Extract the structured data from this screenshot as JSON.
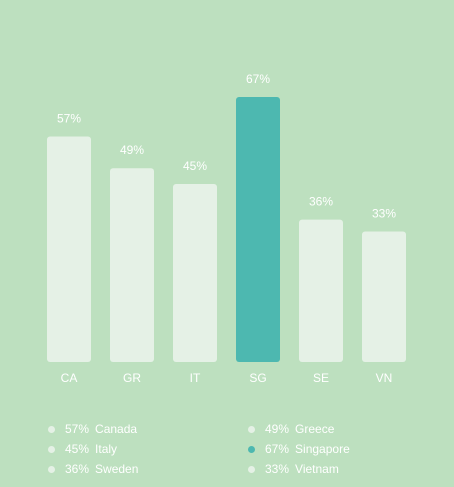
{
  "chart_data": {
    "type": "bar",
    "categories": [
      "CA",
      "GR",
      "IT",
      "SG",
      "SE",
      "VN"
    ],
    "values": [
      57,
      49,
      45,
      67,
      36,
      33
    ],
    "value_labels": [
      "57%",
      "49%",
      "45%",
      "67%",
      "36%",
      "33%"
    ],
    "highlight": "SG",
    "ylim": [
      0,
      67
    ],
    "grid": false,
    "legend_position": "bottom",
    "legend": [
      {
        "value": "57%",
        "name": "Canada",
        "highlight": false
      },
      {
        "value": "49%",
        "name": "Greece",
        "highlight": false
      },
      {
        "value": "45%",
        "name": "Italy",
        "highlight": false
      },
      {
        "value": "67%",
        "name": "Singapore",
        "highlight": true
      },
      {
        "value": "36%",
        "name": "Sweden",
        "highlight": false
      },
      {
        "value": "33%",
        "name": "Vietnam",
        "highlight": false
      }
    ]
  },
  "colors": {
    "background": "#bde0bf",
    "bar": "#e5f1e6",
    "highlight": "#4db8b0",
    "text": "#ffffff",
    "legend_dot": "#e5f1e6"
  }
}
